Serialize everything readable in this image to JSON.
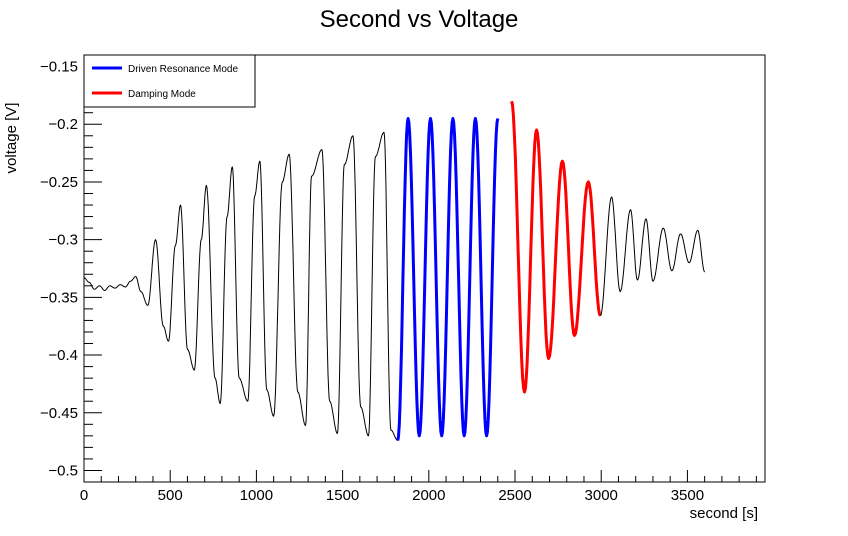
{
  "chart_data": {
    "type": "line",
    "title": "Second vs Voltage",
    "xlabel": "second [s]",
    "ylabel": "voltage [V]",
    "xlim": [
      0,
      3950
    ],
    "ylim": [
      -0.51,
      -0.14
    ],
    "x_ticks": [
      0,
      500,
      1000,
      1500,
      2000,
      2500,
      3000,
      3500
    ],
    "x_tick_labels": [
      "0",
      "500",
      "1000",
      "1500",
      "2000",
      "2500",
      "3000",
      "3500"
    ],
    "y_ticks": [
      -0.5,
      -0.45,
      -0.4,
      -0.35,
      -0.3,
      -0.25,
      -0.2,
      -0.15
    ],
    "y_tick_labels": [
      "−0.5",
      "−0.45",
      "−0.4",
      "−0.35",
      "−0.3",
      "−0.25",
      "−0.2",
      "−0.15"
    ],
    "grid": false,
    "legend_position": "top-left",
    "series": [
      {
        "name": "",
        "color": "#000000",
        "x": [
          0,
          30,
          60,
          90,
          120,
          150,
          180,
          210,
          240,
          270,
          300,
          330,
          370,
          415,
          460,
          490,
          530,
          560,
          600,
          640,
          680,
          710,
          760,
          790,
          830,
          860,
          900,
          950,
          990,
          1020,
          1060,
          1100,
          1150,
          1190,
          1240,
          1285,
          1320,
          1380,
          1425,
          1470,
          1510,
          1560,
          1605,
          1650,
          1690,
          1740,
          1780,
          1820
        ],
        "y": [
          -0.333,
          -0.337,
          -0.343,
          -0.34,
          -0.344,
          -0.34,
          -0.342,
          -0.339,
          -0.341,
          -0.336,
          -0.332,
          -0.345,
          -0.357,
          -0.3,
          -0.375,
          -0.388,
          -0.305,
          -0.27,
          -0.395,
          -0.413,
          -0.3,
          -0.253,
          -0.42,
          -0.442,
          -0.28,
          -0.237,
          -0.42,
          -0.44,
          -0.262,
          -0.232,
          -0.43,
          -0.453,
          -0.25,
          -0.226,
          -0.432,
          -0.461,
          -0.245,
          -0.222,
          -0.44,
          -0.468,
          -0.235,
          -0.21,
          -0.445,
          -0.47,
          -0.228,
          -0.207,
          -0.465,
          -0.474
        ]
      },
      {
        "name": "Driven Resonance Mode",
        "color": "#0000ff",
        "x": [
          1820,
          1880,
          1945,
          2010,
          2075,
          2140,
          2205,
          2270,
          2335,
          2400
        ],
        "y": [
          -0.474,
          -0.195,
          -0.47,
          -0.195,
          -0.47,
          -0.195,
          -0.47,
          -0.195,
          -0.47,
          -0.195
        ]
      },
      {
        "name": "Damping Mode",
        "color": "#ff0000",
        "x": [
          2480,
          2555,
          2625,
          2695,
          2775,
          2845,
          2925,
          2995
        ],
        "y": [
          -0.18,
          -0.432,
          -0.205,
          -0.403,
          -0.232,
          -0.383,
          -0.25,
          -0.366
        ]
      },
      {
        "name": "",
        "color": "#000000",
        "x": [
          2995,
          3060,
          3110,
          3170,
          3210,
          3260,
          3300,
          3360,
          3410,
          3460,
          3510,
          3560,
          3600
        ],
        "y": [
          -0.366,
          -0.263,
          -0.345,
          -0.274,
          -0.335,
          -0.282,
          -0.336,
          -0.29,
          -0.327,
          -0.295,
          -0.32,
          -0.292,
          -0.328
        ]
      }
    ]
  }
}
